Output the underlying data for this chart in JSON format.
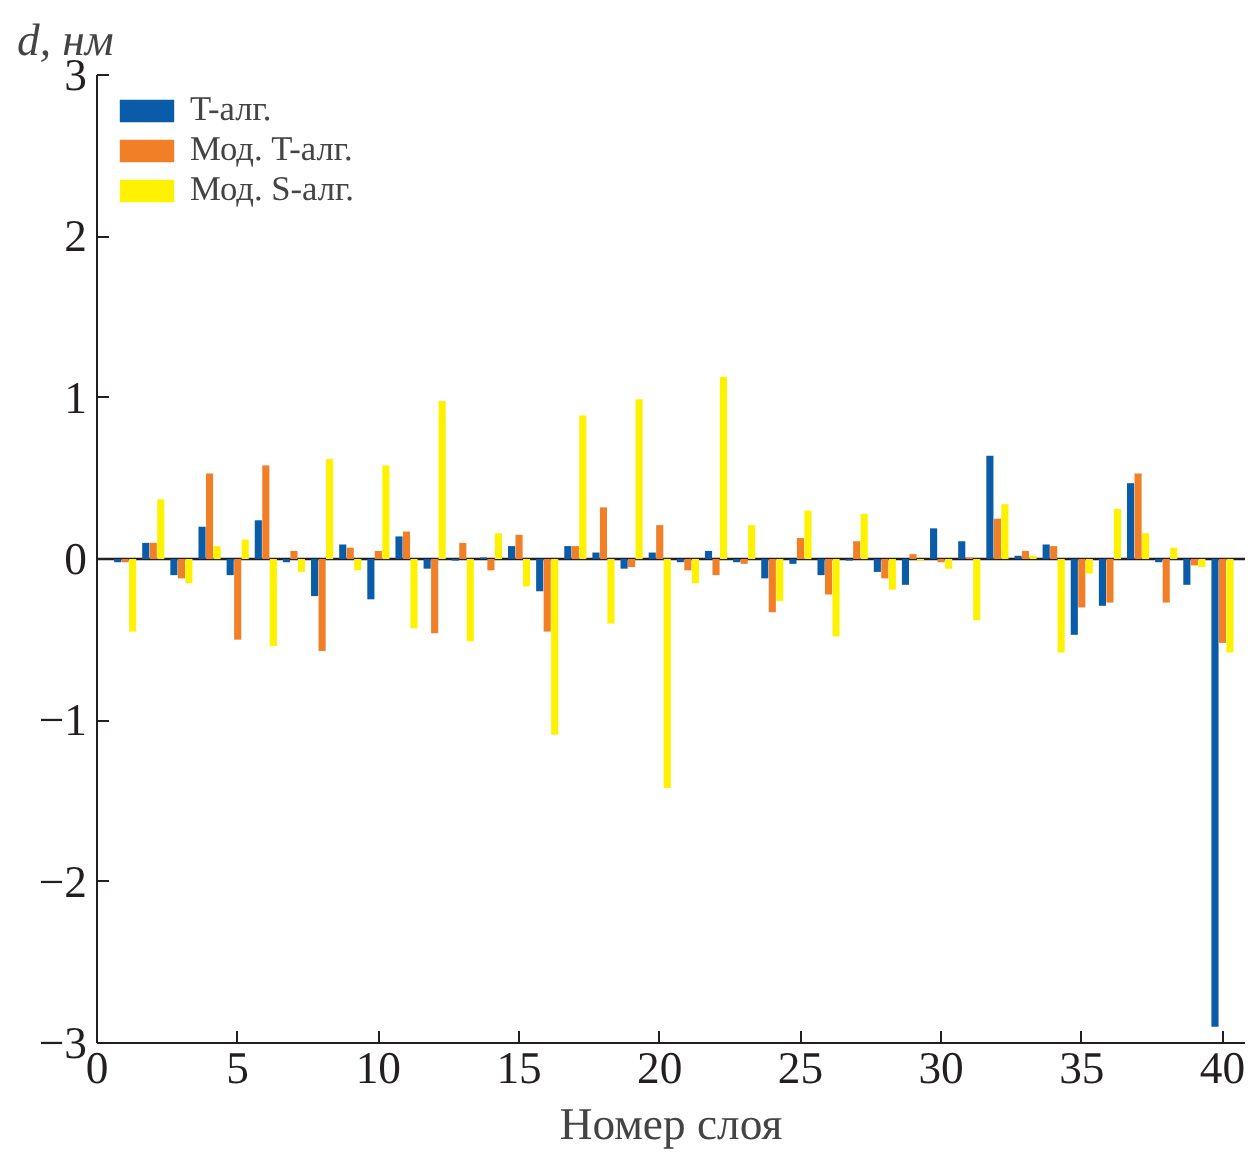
{
  "chart_data": {
    "type": "bar",
    "ylabel": "d, нм",
    "xlabel": "Номер слоя",
    "x": [
      1,
      2,
      3,
      4,
      5,
      6,
      7,
      8,
      9,
      10,
      11,
      12,
      13,
      14,
      15,
      16,
      17,
      18,
      19,
      20,
      21,
      22,
      23,
      24,
      25,
      26,
      27,
      28,
      29,
      30,
      31,
      32,
      33,
      34,
      35,
      36,
      37,
      38,
      39,
      40
    ],
    "series": [
      {
        "name": "T-алг.",
        "color": "#0a5ca8",
        "values": [
          -0.02,
          0.1,
          -0.1,
          0.2,
          -0.1,
          0.24,
          -0.02,
          -0.23,
          0.09,
          -0.25,
          0.14,
          -0.06,
          -0.01,
          0.01,
          0.08,
          -0.2,
          0.08,
          0.04,
          -0.06,
          0.04,
          -0.02,
          0.05,
          -0.02,
          -0.12,
          -0.03,
          -0.1,
          -0.01,
          -0.08,
          -0.16,
          0.19,
          0.11,
          0.64,
          0.02,
          0.09,
          -0.47,
          -0.29,
          0.47,
          -0.02,
          -0.16,
          -2.9
        ]
      },
      {
        "name": "Мод. T-алг.",
        "color": "#f07f27",
        "values": [
          -0.02,
          0.1,
          -0.12,
          0.53,
          -0.5,
          0.58,
          0.05,
          -0.57,
          0.07,
          0.05,
          0.17,
          -0.46,
          0.1,
          -0.07,
          0.15,
          -0.45,
          0.08,
          0.32,
          -0.05,
          0.21,
          -0.07,
          -0.1,
          -0.03,
          -0.33,
          0.13,
          -0.22,
          0.11,
          -0.12,
          0.03,
          -0.02,
          0.01,
          0.25,
          0.05,
          0.08,
          -0.3,
          -0.27,
          0.53,
          -0.27,
          -0.04,
          -0.52
        ]
      },
      {
        "name": "Мод. S-алг.",
        "color": "#fff200",
        "values": [
          -0.45,
          0.37,
          -0.15,
          0.08,
          0.12,
          -0.54,
          -0.08,
          0.62,
          -0.07,
          0.58,
          -0.43,
          0.98,
          -0.51,
          0.16,
          -0.17,
          -1.09,
          0.89,
          -0.4,
          0.99,
          -1.42,
          -0.15,
          1.13,
          0.21,
          -0.26,
          0.3,
          -0.48,
          0.28,
          -0.19,
          -0.01,
          -0.06,
          -0.38,
          0.34,
          0.02,
          -0.58,
          -0.09,
          0.31,
          0.16,
          0.07,
          -0.05,
          -0.58
        ]
      }
    ],
    "xlim": [
      0,
      40.8
    ],
    "xticks": [
      0,
      5,
      10,
      15,
      20,
      25,
      30,
      35,
      40
    ],
    "ylim": [
      -3,
      3
    ],
    "yticks": [
      {
        "value": -3,
        "label": "−3"
      },
      {
        "value": -2,
        "label": "−2"
      },
      {
        "value": -1,
        "label": "−1"
      },
      0,
      1,
      2,
      3
    ],
    "ref_lines": [
      {
        "axis": "y",
        "value": 0,
        "color": "#231f20"
      }
    ],
    "legend": "top left",
    "grid": false
  }
}
